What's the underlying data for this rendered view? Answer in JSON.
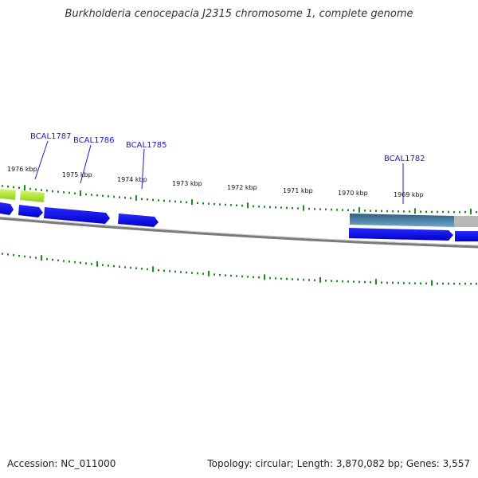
{
  "title": "Burkholderia cenocepacia J2315 chromosome 1, complete genome",
  "footer": {
    "accession": "Accession: NC_011000",
    "summary": "Topology: circular; Length: 3,870,082 bp; Genes: 3,557"
  },
  "ticks": [
    "1976 kbp",
    "1975 kbp",
    "1974 kbp",
    "1973 kbp",
    "1972 kbp",
    "1971 kbp",
    "1970 kbp",
    "1969 kbp"
  ],
  "genes": [
    "BCAL1787",
    "BCAL1786",
    "BCAL1785",
    "BCAL1782"
  ],
  "colors": {
    "cds": "#0b0bea",
    "cds_light": "#b4ec2f",
    "feature_dark": "#3a6d8f",
    "feature_gray": "#b8b8b8",
    "backbone": "#7a7a7a",
    "tick": "#1e8a1e",
    "label": "#1a1acc"
  }
}
